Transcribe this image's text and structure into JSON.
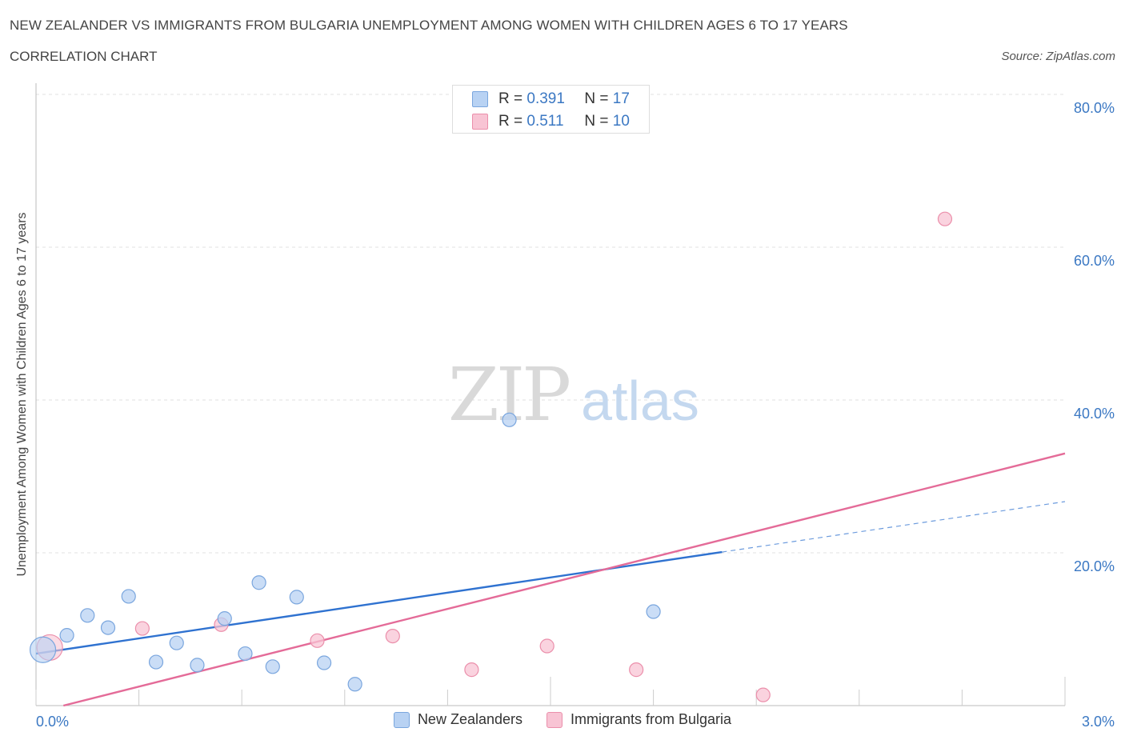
{
  "title": "NEW ZEALANDER VS IMMIGRANTS FROM BULGARIA UNEMPLOYMENT AMONG WOMEN WITH CHILDREN AGES 6 TO 17 YEARS",
  "subtitle": "CORRELATION CHART",
  "source": "Source: ZipAtlas.com",
  "watermark": {
    "zip": "ZIP",
    "atlas": "atlas"
  },
  "colors": {
    "blue_fill": "#b8d2f3",
    "blue_stroke": "#7aa6de",
    "blue_line": "#2f72d0",
    "pink_fill": "#f8c4d4",
    "pink_stroke": "#eb8fab",
    "pink_line": "#e46b98",
    "axis_label": "#3b78c3"
  },
  "stats": {
    "r_label": "R =",
    "n_label": "N =",
    "series": [
      {
        "name": "New Zealanders",
        "r": "0.391",
        "n": "17"
      },
      {
        "name": "Immigrants from Bulgaria",
        "r": "0.511",
        "n": "10"
      }
    ]
  },
  "legend": [
    "New Zealanders",
    "Immigrants from Bulgaria"
  ],
  "chart_data": {
    "type": "scatter",
    "title": "NEW ZEALANDER VS IMMIGRANTS FROM BULGARIA UNEMPLOYMENT AMONG WOMEN WITH CHILDREN AGES 6 TO 17 YEARS",
    "xlabel": "",
    "ylabel": "Unemployment Among Women with Children Ages 6 to 17 years",
    "xlim": [
      0,
      3.0
    ],
    "ylim": [
      0,
      80
    ],
    "x_tick_labels": [
      "0.0%",
      "3.0%"
    ],
    "y_tick_values": [
      20,
      40,
      60,
      80
    ],
    "y_tick_labels": [
      "20.0%",
      "40.0%",
      "60.0%",
      "80.0%"
    ],
    "grid": true,
    "series": [
      {
        "name": "New Zealanders",
        "points": [
          {
            "x": 0.02,
            "y": 7.3,
            "big": true
          },
          {
            "x": 0.09,
            "y": 9.2
          },
          {
            "x": 0.15,
            "y": 11.8
          },
          {
            "x": 0.21,
            "y": 10.2
          },
          {
            "x": 0.27,
            "y": 14.3
          },
          {
            "x": 0.35,
            "y": 5.7
          },
          {
            "x": 0.41,
            "y": 8.2
          },
          {
            "x": 0.47,
            "y": 5.3
          },
          {
            "x": 0.55,
            "y": 11.4
          },
          {
            "x": 0.61,
            "y": 6.8
          },
          {
            "x": 0.65,
            "y": 16.1
          },
          {
            "x": 0.69,
            "y": 5.1
          },
          {
            "x": 0.76,
            "y": 14.2
          },
          {
            "x": 0.84,
            "y": 5.6
          },
          {
            "x": 0.93,
            "y": 2.8
          },
          {
            "x": 1.38,
            "y": 37.4
          },
          {
            "x": 1.8,
            "y": 12.3
          }
        ],
        "trend": {
          "x0": 0.0,
          "y0": 6.8,
          "x1": 2.0,
          "y1": 20.1,
          "dash_to_x": 3.0,
          "dash_to_y": 26.7
        }
      },
      {
        "name": "Immigrants from Bulgaria",
        "points": [
          {
            "x": 0.04,
            "y": 7.6,
            "big": true
          },
          {
            "x": 0.31,
            "y": 10.1
          },
          {
            "x": 0.54,
            "y": 10.6
          },
          {
            "x": 0.82,
            "y": 8.5
          },
          {
            "x": 1.04,
            "y": 9.1
          },
          {
            "x": 1.27,
            "y": 4.7
          },
          {
            "x": 1.49,
            "y": 7.8
          },
          {
            "x": 1.75,
            "y": 4.7
          },
          {
            "x": 2.12,
            "y": 1.4
          },
          {
            "x": 2.65,
            "y": 63.7
          }
        ],
        "trend": {
          "x0": 0.08,
          "y0": 0.0,
          "x1": 3.0,
          "y1": 33.0
        }
      }
    ]
  }
}
